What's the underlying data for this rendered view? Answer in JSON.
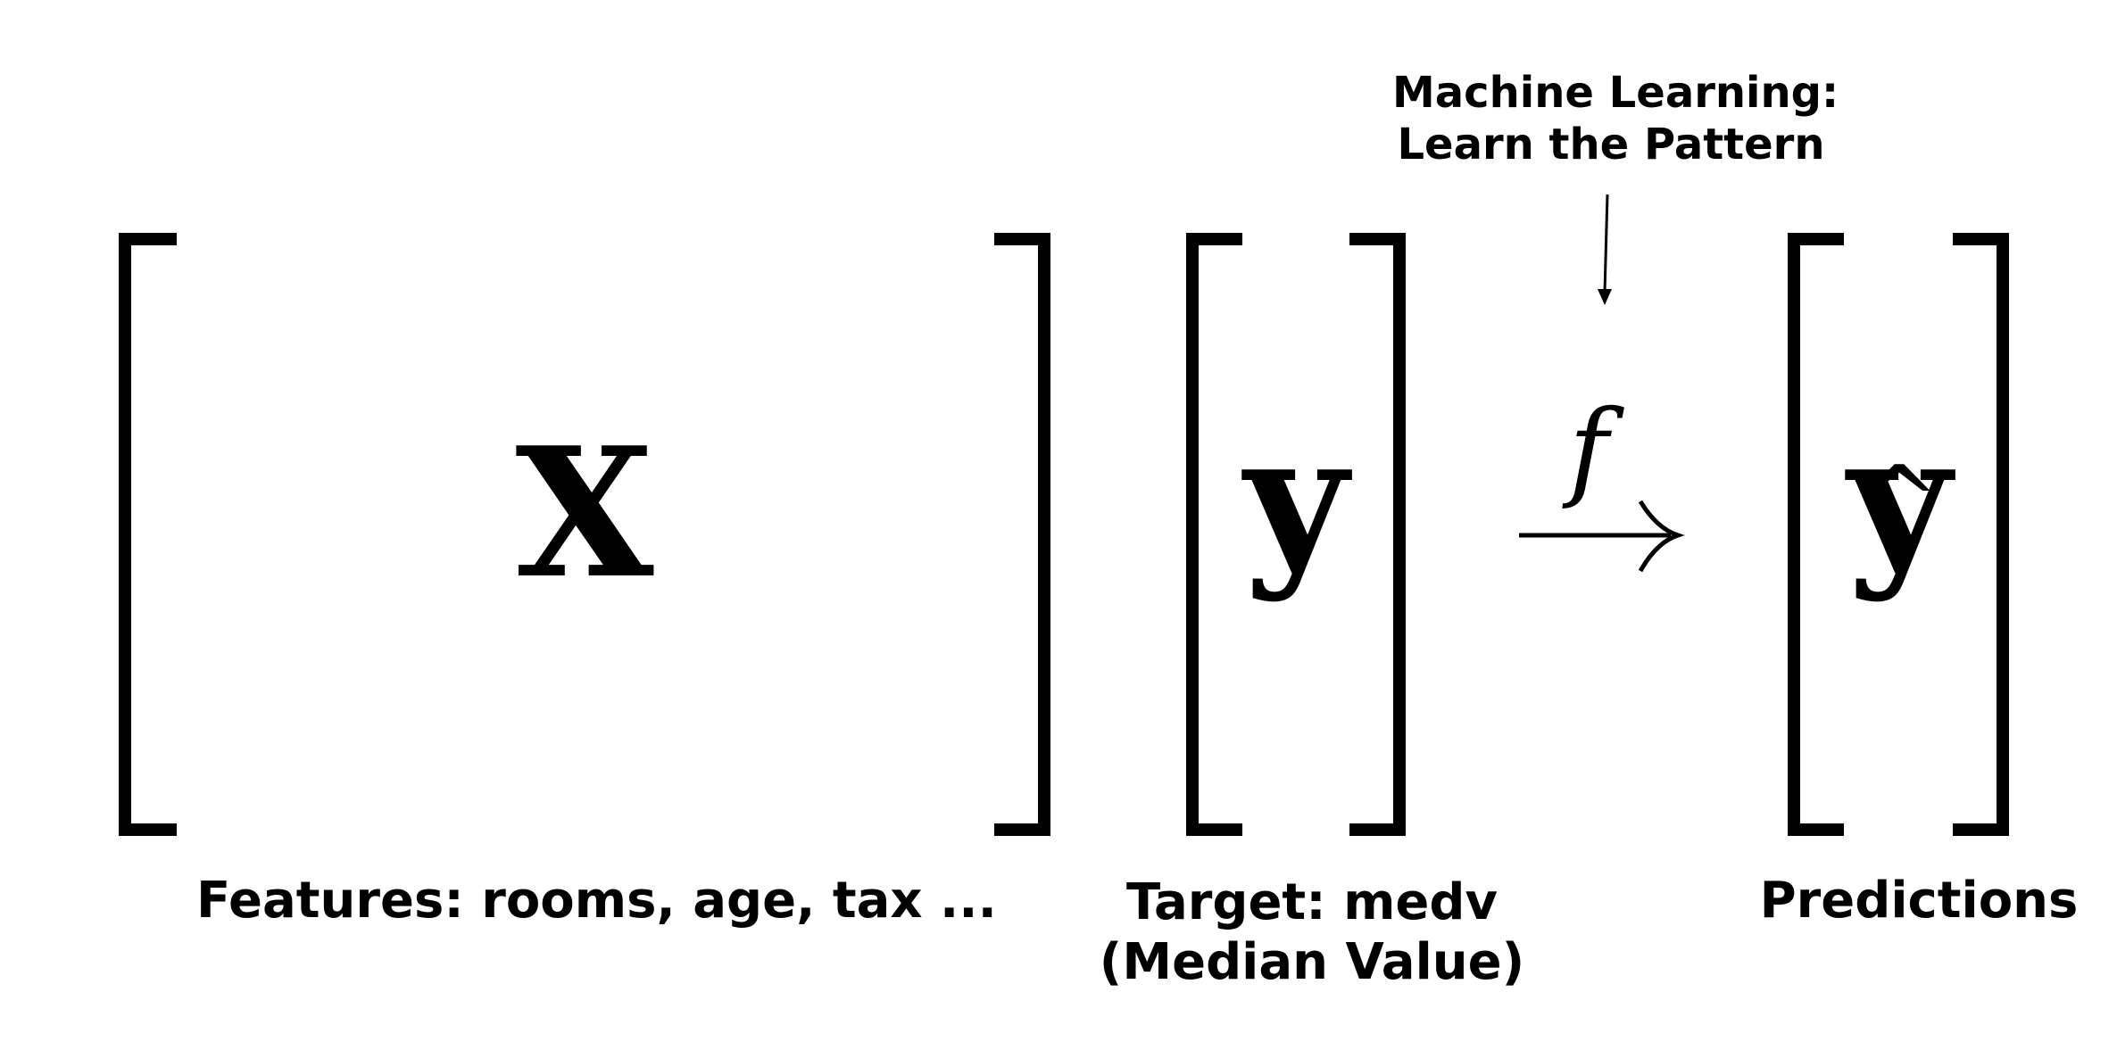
{
  "annotation": {
    "line1": "Machine Learning:",
    "line2": "Learn the Pattern"
  },
  "matrices": {
    "features_symbol": "X",
    "target_symbol": "y",
    "prediction_symbol": "y",
    "prediction_hat": "^",
    "function_symbol": "f",
    "arrow": "→"
  },
  "labels": {
    "features": "Features: rooms, age, tax ...",
    "target_line1": "Target: medv",
    "target_line2": "(Median Value)",
    "predictions": "Predictions"
  }
}
